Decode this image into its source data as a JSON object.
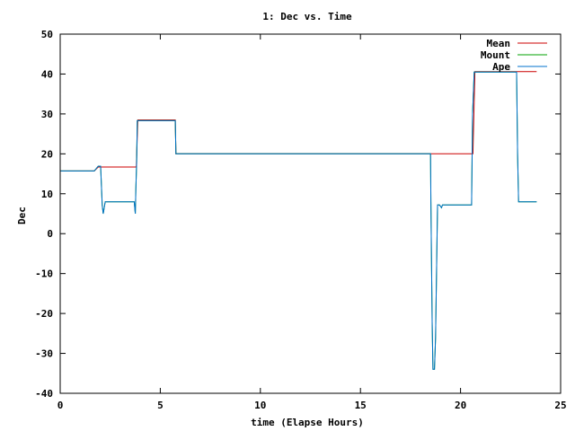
{
  "chart_data": {
    "type": "line",
    "title": "1: Dec vs. Time",
    "xlabel": "time (Elapse Hours)",
    "ylabel": "Dec",
    "xlim": [
      0,
      25
    ],
    "ylim": [
      -40,
      50
    ],
    "xticks": [
      0,
      5,
      10,
      15,
      20,
      25
    ],
    "yticks": [
      -40,
      -30,
      -20,
      -10,
      0,
      10,
      20,
      30,
      40,
      50
    ],
    "grid": false,
    "legend_position": "top-right",
    "series": [
      {
        "name": "Mean",
        "color": "#cc0000",
        "x": [
          0,
          1.7,
          1.9,
          2.1,
          3.72,
          3.8,
          3.88,
          5.75,
          5.78,
          18.5,
          18.52,
          18.62,
          18.7,
          18.85,
          18.9,
          19.05,
          19.15,
          20.6,
          20.62,
          20.72,
          22.8,
          22.85,
          22.9,
          23.8
        ],
        "y": [
          15.7,
          15.7,
          16.7,
          16.7,
          16.7,
          16.7,
          28.5,
          28.5,
          20,
          20,
          20,
          20,
          20,
          20,
          20,
          20,
          20,
          20,
          20,
          40.6,
          40.6,
          40.6,
          40.6,
          40.6
        ]
      },
      {
        "name": "Mount",
        "color": "#00a000",
        "x": [
          0,
          1.7,
          1.9,
          2.02,
          2.1,
          2.15,
          2.25,
          3.7,
          3.75,
          3.78,
          3.82,
          3.85,
          3.9,
          5.75,
          5.78,
          18.5,
          18.52,
          18.58,
          18.62,
          18.7,
          18.75,
          18.85,
          18.95,
          19.05,
          19.1,
          19.2,
          19.3,
          20.55,
          20.6,
          20.68,
          20.75,
          22.8,
          22.85,
          22.9,
          23.8
        ],
        "y": [
          15.7,
          15.7,
          16.9,
          16.9,
          7,
          5,
          8,
          8,
          5,
          11,
          18,
          28.3,
          28.3,
          28.3,
          20,
          20,
          8,
          -22,
          -34,
          -34,
          -26,
          7.2,
          7.2,
          6.5,
          7.2,
          7.2,
          7.2,
          7.2,
          30,
          40.5,
          40.5,
          40.5,
          20,
          8,
          8
        ]
      },
      {
        "name": "Ape",
        "color": "#0070cc",
        "x": [
          0,
          1.7,
          1.9,
          2.02,
          2.1,
          2.15,
          2.25,
          3.7,
          3.75,
          3.78,
          3.82,
          3.85,
          3.9,
          5.75,
          5.78,
          18.5,
          18.52,
          18.58,
          18.62,
          18.7,
          18.75,
          18.85,
          18.95,
          19.05,
          19.1,
          19.2,
          19.3,
          20.55,
          20.6,
          20.68,
          20.75,
          22.8,
          22.85,
          22.9,
          23.8
        ],
        "y": [
          15.7,
          15.7,
          16.9,
          16.9,
          7,
          5,
          8,
          8,
          5,
          11,
          18,
          28.3,
          28.3,
          28.3,
          20,
          20,
          8,
          -22,
          -34,
          -34,
          -26,
          7.2,
          7.2,
          6.5,
          7.2,
          7.2,
          7.2,
          7.2,
          30,
          40.5,
          40.5,
          40.5,
          20,
          8,
          8
        ]
      }
    ]
  }
}
